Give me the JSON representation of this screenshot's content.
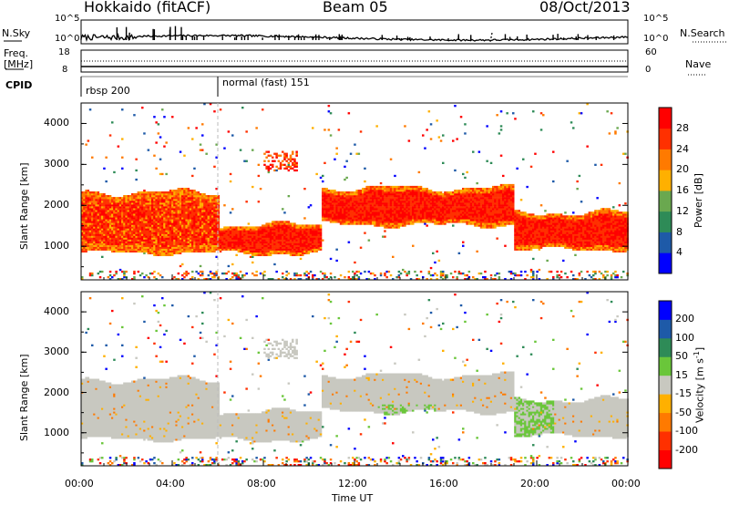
{
  "header": {
    "radar": "Hokkaido (fitACF)",
    "beam": "Beam 05",
    "date": "08/Oct/2013"
  },
  "summary": {
    "nsky_label": "N.Sky",
    "nsky_ticks": [
      "10^5",
      "10^0"
    ],
    "nsearch_label": "N.Search",
    "freq_label": "Freq.",
    "freq_unit": "[MHz]",
    "freq_ticks": [
      "18",
      "8"
    ],
    "nave_label": "Nave",
    "nave_ticks": [
      "60",
      "0"
    ],
    "cpid_label": "CPID",
    "cpid_modes": [
      {
        "name": "rbsp 200",
        "start_hour": 0
      },
      {
        "name": "normal (fast) 151",
        "start_hour": 6
      }
    ]
  },
  "chart_data": [
    {
      "type": "heatmap",
      "name": "power",
      "ylabel": "Slant Range [km]",
      "ylim": [
        180,
        4500
      ],
      "yticks": [
        "1000",
        "2000",
        "3000",
        "4000"
      ],
      "xlim": [
        0,
        24
      ],
      "colorbar": {
        "label": "Power [dB]",
        "ticks": [
          "4",
          "8",
          "12",
          "16",
          "20",
          "24",
          "28"
        ],
        "colors": [
          "#0000ff",
          "#1e5aa8",
          "#2e8b57",
          "#6aa84f",
          "#ffb000",
          "#ff7a00",
          "#ff3000",
          "#ff0000"
        ]
      },
      "echo_bands_km": [
        {
          "from_hour": 0,
          "to_hour": 6,
          "lower": 820,
          "upper": 2300
        },
        {
          "from_hour": 6,
          "to_hour": 10.5,
          "lower": 800,
          "upper": 1500
        },
        {
          "from_hour": 10.5,
          "to_hour": 19,
          "lower": 1500,
          "upper": 2400
        },
        {
          "from_hour": 19,
          "to_hour": 24,
          "lower": 900,
          "upper": 1800
        }
      ]
    },
    {
      "type": "heatmap",
      "name": "velocity",
      "ylabel": "Slant Range [km]",
      "ylim": [
        180,
        4500
      ],
      "yticks": [
        "1000",
        "2000",
        "3000",
        "4000"
      ],
      "xlim": [
        0,
        24
      ],
      "xlabel": "Time UT",
      "xticks": [
        "00:00",
        "04:00",
        "08:00",
        "12:00",
        "16:00",
        "20:00",
        "00:00"
      ],
      "colorbar": {
        "label": "Velocity [m s",
        "label_sup": "-1",
        "label_end": "]",
        "ticks": [
          "200",
          "100",
          "50",
          "15",
          "-15",
          "-50",
          "-100",
          "-200"
        ],
        "colors": [
          "#0000ff",
          "#1e5aa8",
          "#2e8b57",
          "#6ac63a",
          "#c8c8c0",
          "#ffb000",
          "#ff7a00",
          "#ff3000",
          "#ff0000"
        ]
      }
    }
  ]
}
